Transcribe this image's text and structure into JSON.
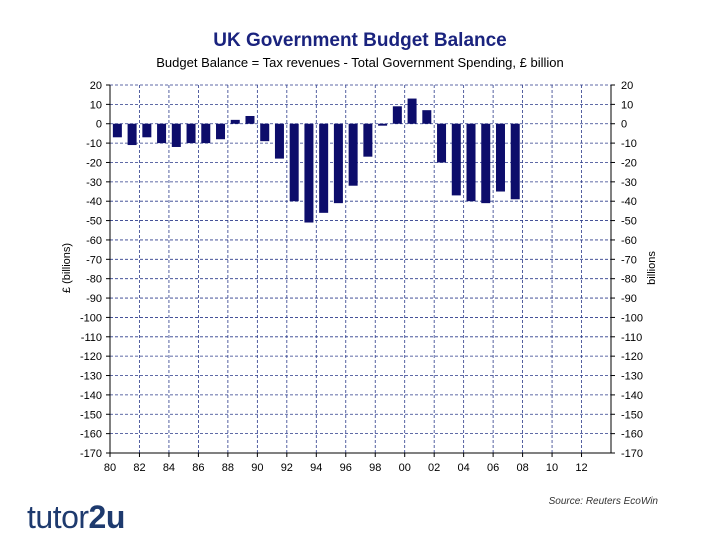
{
  "chart_data": {
    "type": "bar",
    "title": "UK Government Budget Balance",
    "subtitle": "Budget Balance = Tax revenues - Total Government Spending, £ billion",
    "ylabel_left": "£ (billions)",
    "ylabel_right": "billions",
    "ylim": [
      -170,
      20
    ],
    "yticks": [
      20,
      10,
      0,
      -10,
      -20,
      -30,
      -40,
      -50,
      -60,
      -70,
      -80,
      -90,
      -100,
      -110,
      -120,
      -130,
      -140,
      -150,
      -160,
      -170
    ],
    "xlim": [
      1980,
      2014
    ],
    "xticks": [
      1980,
      1982,
      1984,
      1986,
      1988,
      1990,
      1992,
      1994,
      1996,
      1998,
      2000,
      2002,
      2004,
      2006,
      2008,
      2010,
      2012
    ],
    "xtick_labels": [
      "80",
      "82",
      "84",
      "86",
      "88",
      "90",
      "92",
      "94",
      "96",
      "98",
      "00",
      "02",
      "04",
      "06",
      "08",
      "10",
      "12"
    ],
    "grid": true,
    "series": [
      {
        "name": "Budget Balance",
        "color": "#0d0d6b",
        "x": [
          1980,
          1981,
          1982,
          1983,
          1984,
          1985,
          1986,
          1987,
          1988,
          1989,
          1990,
          1991,
          1992,
          1993,
          1994,
          1995,
          1996,
          1997,
          1998,
          1999,
          2000,
          2001,
          2002,
          2003,
          2004,
          2005,
          2006,
          2007
        ],
        "values": [
          -7,
          -11,
          -7,
          -10,
          -12,
          -10,
          -10,
          -8,
          2,
          4,
          -9,
          -18,
          -40,
          -51,
          -46,
          -41,
          -32,
          -17,
          -1,
          9,
          13,
          7,
          -20,
          -37,
          -40,
          -41,
          -35,
          -39
        ]
      }
    ]
  },
  "source": "Source: Reuters EcoWin",
  "logo": {
    "part1": "tutor",
    "part2": "2u"
  }
}
